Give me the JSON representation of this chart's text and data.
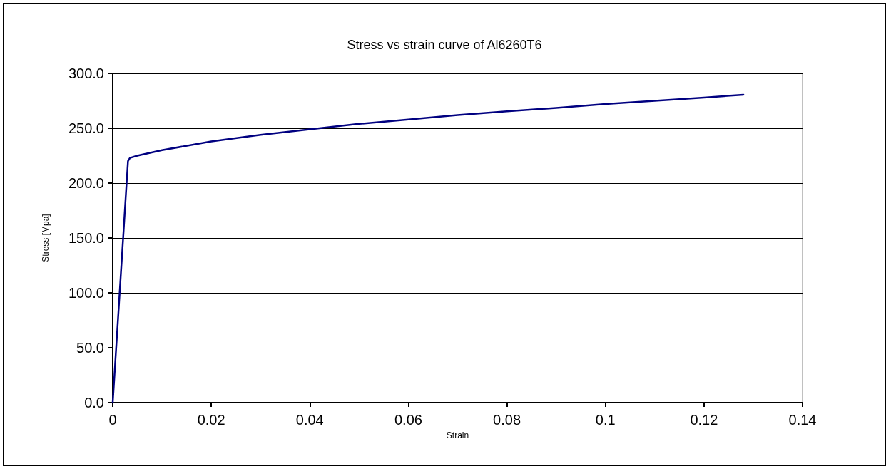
{
  "chart_data": {
    "type": "line",
    "title": "Stress vs strain curve of Al6260T6",
    "xlabel": "Strain",
    "ylabel": "Stress [Mpa]",
    "x": [
      0,
      0.0031,
      0.0035,
      0.005,
      0.01,
      0.02,
      0.03,
      0.04,
      0.05,
      0.06,
      0.07,
      0.08,
      0.09,
      0.1,
      0.11,
      0.12,
      0.128
    ],
    "series": [
      {
        "color": "#000080",
        "values": [
          0,
          220,
          223,
          225,
          230,
          238,
          244,
          249,
          254,
          258,
          262,
          265.5,
          268.5,
          272,
          275,
          278,
          280.5
        ]
      }
    ],
    "xlim": [
      0,
      0.14
    ],
    "xticks": [
      0,
      0.02,
      0.04,
      0.06,
      0.08,
      0.1,
      0.12,
      0.14
    ],
    "ylim": [
      0,
      300
    ],
    "yticks": [
      {
        "value": 0,
        "label": "0.0"
      },
      {
        "value": 50,
        "label": "50.0"
      },
      {
        "value": 100,
        "label": "100.0"
      },
      {
        "value": 150,
        "label": "150.0"
      },
      {
        "value": 200,
        "label": "200.0"
      },
      {
        "value": 250,
        "label": "250.0"
      },
      {
        "value": 300,
        "label": "300.0"
      }
    ],
    "grid": "y",
    "marker": "none",
    "line_style": "solid"
  }
}
